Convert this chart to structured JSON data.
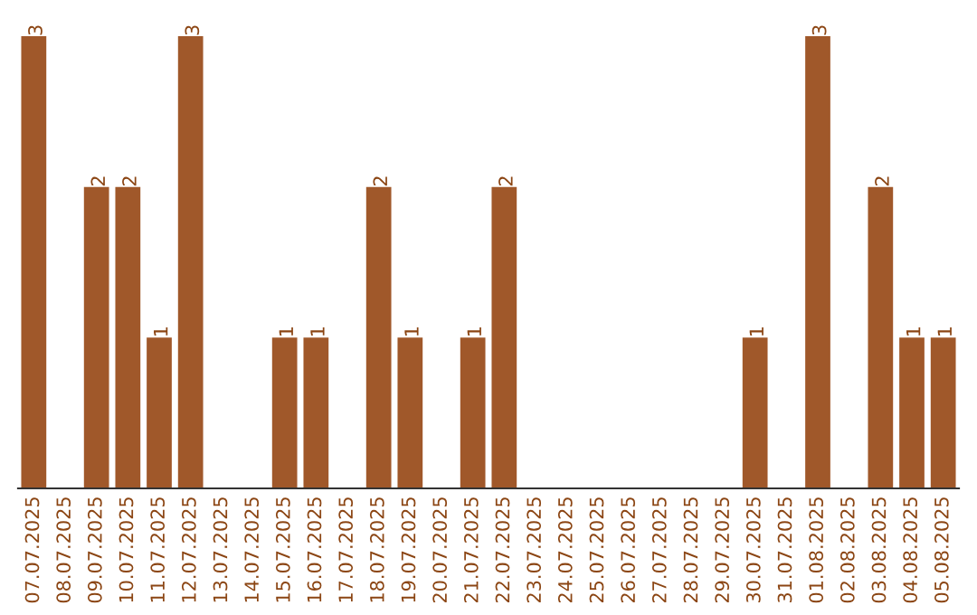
{
  "chart_data": {
    "type": "bar",
    "categories": [
      "07.07.2025",
      "08.07.2025",
      "09.07.2025",
      "10.07.2025",
      "11.07.2025",
      "12.07.2025",
      "13.07.2025",
      "14.07.2025",
      "15.07.2025",
      "16.07.2025",
      "17.07.2025",
      "18.07.2025",
      "19.07.2025",
      "20.07.2025",
      "21.07.2025",
      "22.07.2025",
      "23.07.2025",
      "24.07.2025",
      "25.07.2025",
      "26.07.2025",
      "27.07.2025",
      "28.07.2025",
      "29.07.2025",
      "30.07.2025",
      "31.07.2025",
      "01.08.2025",
      "02.08.2025",
      "03.08.2025",
      "04.08.2025",
      "05.08.2025"
    ],
    "values": [
      3,
      0,
      2,
      2,
      1,
      3,
      0,
      0,
      1,
      1,
      0,
      2,
      1,
      0,
      1,
      2,
      0,
      0,
      0,
      0,
      0,
      0,
      0,
      1,
      0,
      3,
      0,
      2,
      1,
      1
    ],
    "value_labels": [
      "3",
      null,
      "2",
      "2",
      "1",
      "3",
      null,
      null,
      "1",
      "1",
      null,
      "2",
      "1",
      null,
      "1",
      "2",
      null,
      null,
      null,
      null,
      null,
      null,
      null,
      "1",
      null,
      "3",
      null,
      "2",
      "1",
      "1"
    ],
    "color": "#a0582a",
    "ylim": [
      0,
      3
    ],
    "tick_labels": "x",
    "grid": false,
    "legend": false
  }
}
